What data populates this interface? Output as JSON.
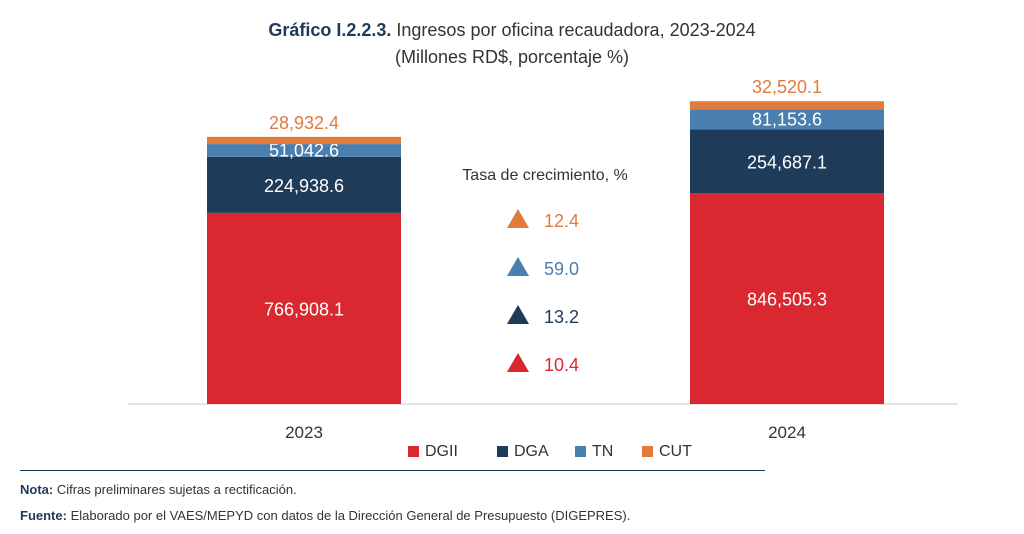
{
  "chart_data": {
    "type": "bar",
    "stacked": true,
    "title_prefix": "Gráfico I.2.2.3.",
    "title": "Ingresos por oficina recaudadora, 2023-2024",
    "subtitle": "(Millones RD$, porcentaje %)",
    "categories": [
      "2023",
      "2024"
    ],
    "series": [
      {
        "name": "DGII",
        "color": "#d9282f",
        "values": [
          766908.1,
          846505.3
        ],
        "labels": [
          "766,908.1",
          "846,505.3"
        ]
      },
      {
        "name": "DGA",
        "color": "#1f3b5a",
        "values": [
          224938.6,
          254687.1
        ],
        "labels": [
          "224,938.6",
          "254,687.1"
        ]
      },
      {
        "name": "TN",
        "color": "#4a7fb0",
        "values": [
          51042.6,
          81153.6
        ],
        "labels": [
          "51,042.6",
          "81,153.6"
        ]
      },
      {
        "name": "CUT",
        "color": "#e07b3a",
        "values": [
          28932.4,
          32520.1
        ],
        "labels": [
          "28,932.4",
          "32,520.1"
        ]
      }
    ],
    "ylim": [
      0,
      1300000
    ],
    "legend_position": "bottom",
    "growth": {
      "title": "Tasa de crecimiento, %",
      "items": [
        {
          "series": "CUT",
          "value": "12.4",
          "color": "#e07b3a"
        },
        {
          "series": "TN",
          "value": "59.0",
          "color": "#4a7fb0"
        },
        {
          "series": "DGA",
          "value": "13.2",
          "color": "#1f3b5a"
        },
        {
          "series": "DGII",
          "value": "10.4",
          "color": "#d9282f"
        }
      ]
    }
  },
  "notes": {
    "nota_label": "Nota:",
    "nota_text": "Cifras preliminares sujetas a rectificación.",
    "fuente_label": "Fuente:",
    "fuente_text": "Elaborado por el VAES/MEPYD con datos de la Dirección General de Presupuesto (DIGEPRES)."
  }
}
